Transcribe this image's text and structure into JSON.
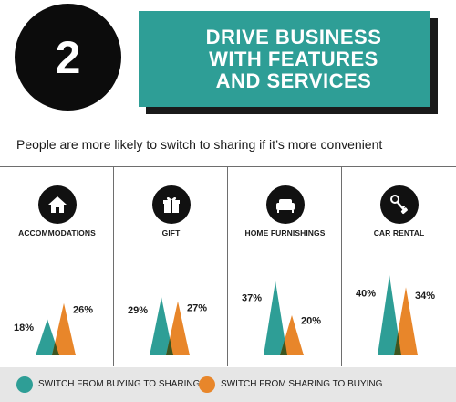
{
  "header": {
    "step_number": "2",
    "title": "DRIVE BUSINESS\nWITH FEATURES\nAND SERVICES",
    "subtitle": "People are more likely to switch to sharing if it’s more convenient"
  },
  "colors": {
    "teal": "#2e9e96",
    "orange": "#e8862a",
    "overlap": "#3d5520",
    "black": "#111111",
    "legend_bg": "#e6e6e6"
  },
  "categories": [
    {
      "label": "ACCOMMODATIONS",
      "icon": "house-icon",
      "buying_to_sharing": "18%",
      "sharing_to_buying": "26%"
    },
    {
      "label": "GIFT",
      "icon": "gift-icon",
      "buying_to_sharing": "29%",
      "sharing_to_buying": "27%"
    },
    {
      "label": "HOME FURNISHINGS",
      "icon": "sofa-icon",
      "buying_to_sharing": "37%",
      "sharing_to_buying": "20%"
    },
    {
      "label": "CAR RENTAL",
      "icon": "car-keys-icon",
      "buying_to_sharing": "40%",
      "sharing_to_buying": "34%"
    }
  ],
  "legend": {
    "buying_to_sharing": "SWITCH FROM BUYING TO SHARING",
    "sharing_to_buying": "SWITCH FROM SHARING TO BUYING"
  },
  "chart_data": {
    "type": "bar",
    "categories": [
      "ACCOMMODATIONS",
      "GIFT",
      "HOME FURNISHINGS",
      "CAR RENTAL"
    ],
    "series": [
      {
        "name": "SWITCH FROM BUYING TO SHARING",
        "values": [
          18,
          29,
          37,
          40
        ]
      },
      {
        "name": "SWITCH FROM SHARING TO BUYING",
        "values": [
          26,
          27,
          20,
          34
        ]
      }
    ],
    "unit": "%"
  }
}
